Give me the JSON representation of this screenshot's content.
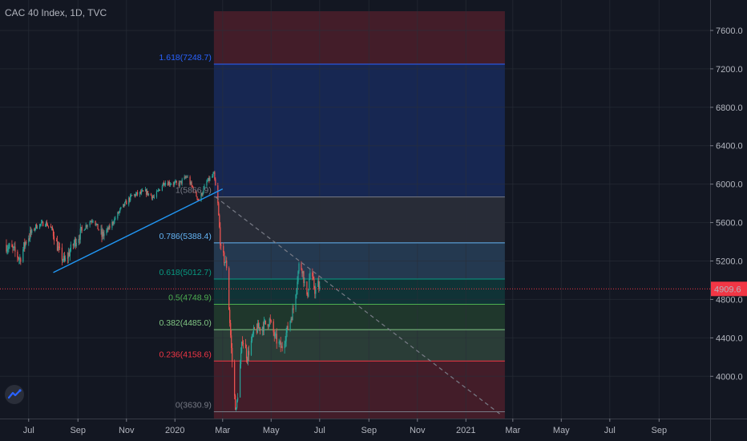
{
  "header": {
    "title": "CAC 40 Index, 1D, TVC"
  },
  "icons": {
    "logo": "tradingview-logo-icon"
  },
  "colors": {
    "background": "#131722",
    "up_candle": "#26a69a",
    "down_candle": "#ef5350",
    "trendline": "#2196f3",
    "projection": "#787b86",
    "price_line": "#f23645"
  },
  "chart_data": {
    "type": "candlestick",
    "title": "CAC 40 Index, 1D, TVC",
    "x_tick_labels": [
      "Jul",
      "Sep",
      "Nov",
      "2020",
      "Mar",
      "May",
      "Jul",
      "Sep",
      "Nov",
      "2021",
      "Mar",
      "May",
      "Jul",
      "Sep"
    ],
    "y_ticks": [
      "4000.0",
      "4400.0",
      "4800.0",
      "5200.0",
      "5600.0",
      "6000.0",
      "6400.0",
      "6800.0",
      "7200.0",
      "7600.0"
    ],
    "ylim": [
      3560,
      7800
    ],
    "current_price": {
      "value": 4909.6,
      "label": "4909.6"
    },
    "price_path": [
      [
        "2019-06-01",
        5370
      ],
      [
        "2019-06-12",
        5310
      ],
      [
        "2019-06-20",
        5220
      ],
      [
        "2019-06-28",
        5420
      ],
      [
        "2019-07-10",
        5560
      ],
      [
        "2019-07-22",
        5600
      ],
      [
        "2019-07-31",
        5520
      ],
      [
        "2019-08-08",
        5300
      ],
      [
        "2019-08-15",
        5190
      ],
      [
        "2019-08-28",
        5400
      ],
      [
        "2019-09-10",
        5560
      ],
      [
        "2019-09-20",
        5640
      ],
      [
        "2019-10-01",
        5460
      ],
      [
        "2019-10-10",
        5540
      ],
      [
        "2019-10-25",
        5740
      ],
      [
        "2019-11-08",
        5880
      ],
      [
        "2019-11-25",
        5920
      ],
      [
        "2019-12-06",
        5860
      ],
      [
        "2019-12-18",
        6020
      ],
      [
        "2020-01-06",
        6000
      ],
      [
        "2020-01-16",
        6080
      ],
      [
        "2020-01-31",
        5830
      ],
      [
        "2020-02-10",
        6020
      ],
      [
        "2020-02-19",
        6100
      ],
      [
        "2020-02-24",
        5790
      ],
      [
        "2020-02-28",
        5300
      ],
      [
        "2020-03-06",
        5150
      ],
      [
        "2020-03-12",
        4280
      ],
      [
        "2020-03-16",
        3780
      ],
      [
        "2020-03-18",
        3630
      ],
      [
        "2020-03-26",
        4400
      ],
      [
        "2020-04-01",
        4200
      ],
      [
        "2020-04-10",
        4480
      ],
      [
        "2020-04-20",
        4520
      ],
      [
        "2020-04-29",
        4580
      ],
      [
        "2020-05-06",
        4400
      ],
      [
        "2020-05-14",
        4290
      ],
      [
        "2020-05-22",
        4500
      ],
      [
        "2020-05-29",
        4700
      ],
      [
        "2020-06-05",
        5150
      ],
      [
        "2020-06-09",
        5130
      ],
      [
        "2020-06-15",
        4800
      ],
      [
        "2020-06-19",
        5080
      ],
      [
        "2020-06-25",
        4900
      ],
      [
        "2020-06-29",
        4950
      ],
      [
        "2020-07-01",
        4910
      ]
    ],
    "fibonacci": {
      "start_date": "2020-02-19",
      "end_date": "2021-02-19",
      "levels": [
        {
          "ratio": "0",
          "price": 3630.9,
          "label": "0(3630.9)",
          "color": "#787b86"
        },
        {
          "ratio": "0.236",
          "price": 4158.6,
          "label": "0.236(4158.6)",
          "color": "#f23645"
        },
        {
          "ratio": "0.382",
          "price": 4485.0,
          "label": "0.382(4485.0)",
          "color": "#81c784"
        },
        {
          "ratio": "0.5",
          "price": 4748.9,
          "label": "0.5(4748.9)",
          "color": "#4caf50"
        },
        {
          "ratio": "0.618",
          "price": 5012.7,
          "label": "0.618(5012.7)",
          "color": "#089981"
        },
        {
          "ratio": "0.786",
          "price": 5388.4,
          "label": "0.786(5388.4)",
          "color": "#64b5f6"
        },
        {
          "ratio": "1",
          "price": 5866.9,
          "label": "1(5866.9)",
          "color": "#787b86"
        },
        {
          "ratio": "1.618",
          "price": 7248.7,
          "label": "1.618(7248.7)",
          "color": "#2962ff"
        }
      ],
      "zones": [
        {
          "from": 3560,
          "to": 4158.6,
          "color": "#f23645"
        },
        {
          "from": 4158.6,
          "to": 4485.0,
          "color": "#81c784"
        },
        {
          "from": 4485.0,
          "to": 4748.9,
          "color": "#4caf50"
        },
        {
          "from": 4748.9,
          "to": 5012.7,
          "color": "#089981"
        },
        {
          "from": 5012.7,
          "to": 5388.4,
          "color": "#64b5f6"
        },
        {
          "from": 5388.4,
          "to": 5866.9,
          "color": "#787b86"
        },
        {
          "from": 5866.9,
          "to": 7248.7,
          "color": "#2962ff"
        },
        {
          "from": 7248.7,
          "to": 7800,
          "color": "#f23645"
        }
      ]
    },
    "trendline": {
      "from": [
        "2019-08-01",
        5080
      ],
      "to": [
        "2020-03-01",
        5950
      ]
    },
    "projection": {
      "from": [
        "2020-02-21",
        5866.9
      ],
      "to": [
        "2021-02-14",
        3600
      ]
    }
  }
}
